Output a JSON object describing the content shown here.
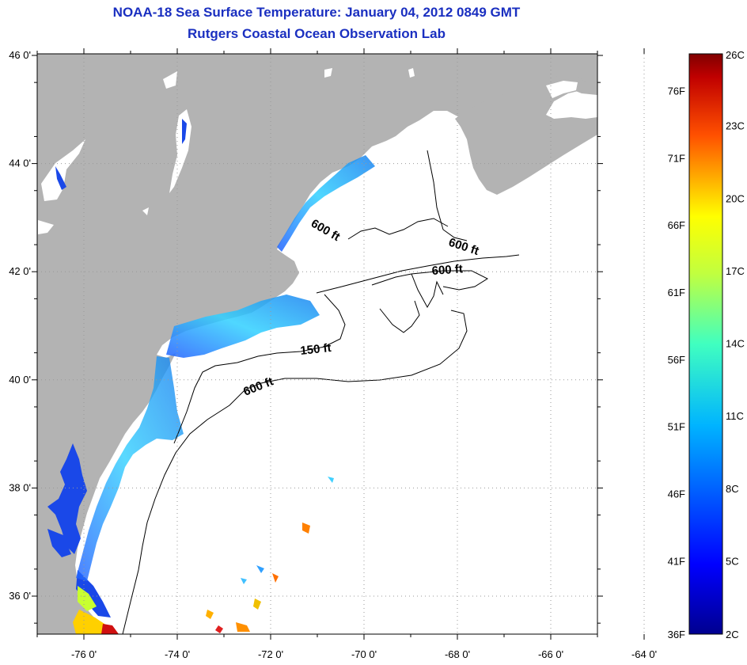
{
  "header": {
    "title": "NOAA-18 Sea Surface Temperature:  January 04, 2012 0849 GMT",
    "subtitle": "Rutgers Coastal Ocean Observation Lab"
  },
  "map": {
    "lat_ticks": [
      {
        "value": 46,
        "label": "46 0'"
      },
      {
        "value": 44,
        "label": "44 0'"
      },
      {
        "value": 42,
        "label": "42 0'"
      },
      {
        "value": 40,
        "label": "40 0'"
      },
      {
        "value": 38,
        "label": "38 0'"
      },
      {
        "value": 36,
        "label": "36 0'"
      }
    ],
    "lon_ticks": [
      {
        "value": -76,
        "label": "-76 0'"
      },
      {
        "value": -74,
        "label": "-74 0'"
      },
      {
        "value": -72,
        "label": "-72 0'"
      },
      {
        "value": -70,
        "label": "-70 0'"
      },
      {
        "value": -68,
        "label": "-68 0'"
      },
      {
        "value": -66,
        "label": "-66 0'"
      },
      {
        "value": -64,
        "label": "-64 0'"
      }
    ],
    "depth_labels": [
      "600 ft",
      "600 ft",
      "600 ft",
      "150 ft",
      "600 ft"
    ],
    "land_color": "#b3b3b3",
    "water_color": "#ffffff"
  },
  "colorbar": {
    "fahrenheit": [
      "76F",
      "71F",
      "66F",
      "61F",
      "56F",
      "51F",
      "46F",
      "41F",
      "36F"
    ],
    "celsius": [
      "26C",
      "23C",
      "20C",
      "17C",
      "14C",
      "11C",
      "8C",
      "5C",
      "2C"
    ]
  }
}
